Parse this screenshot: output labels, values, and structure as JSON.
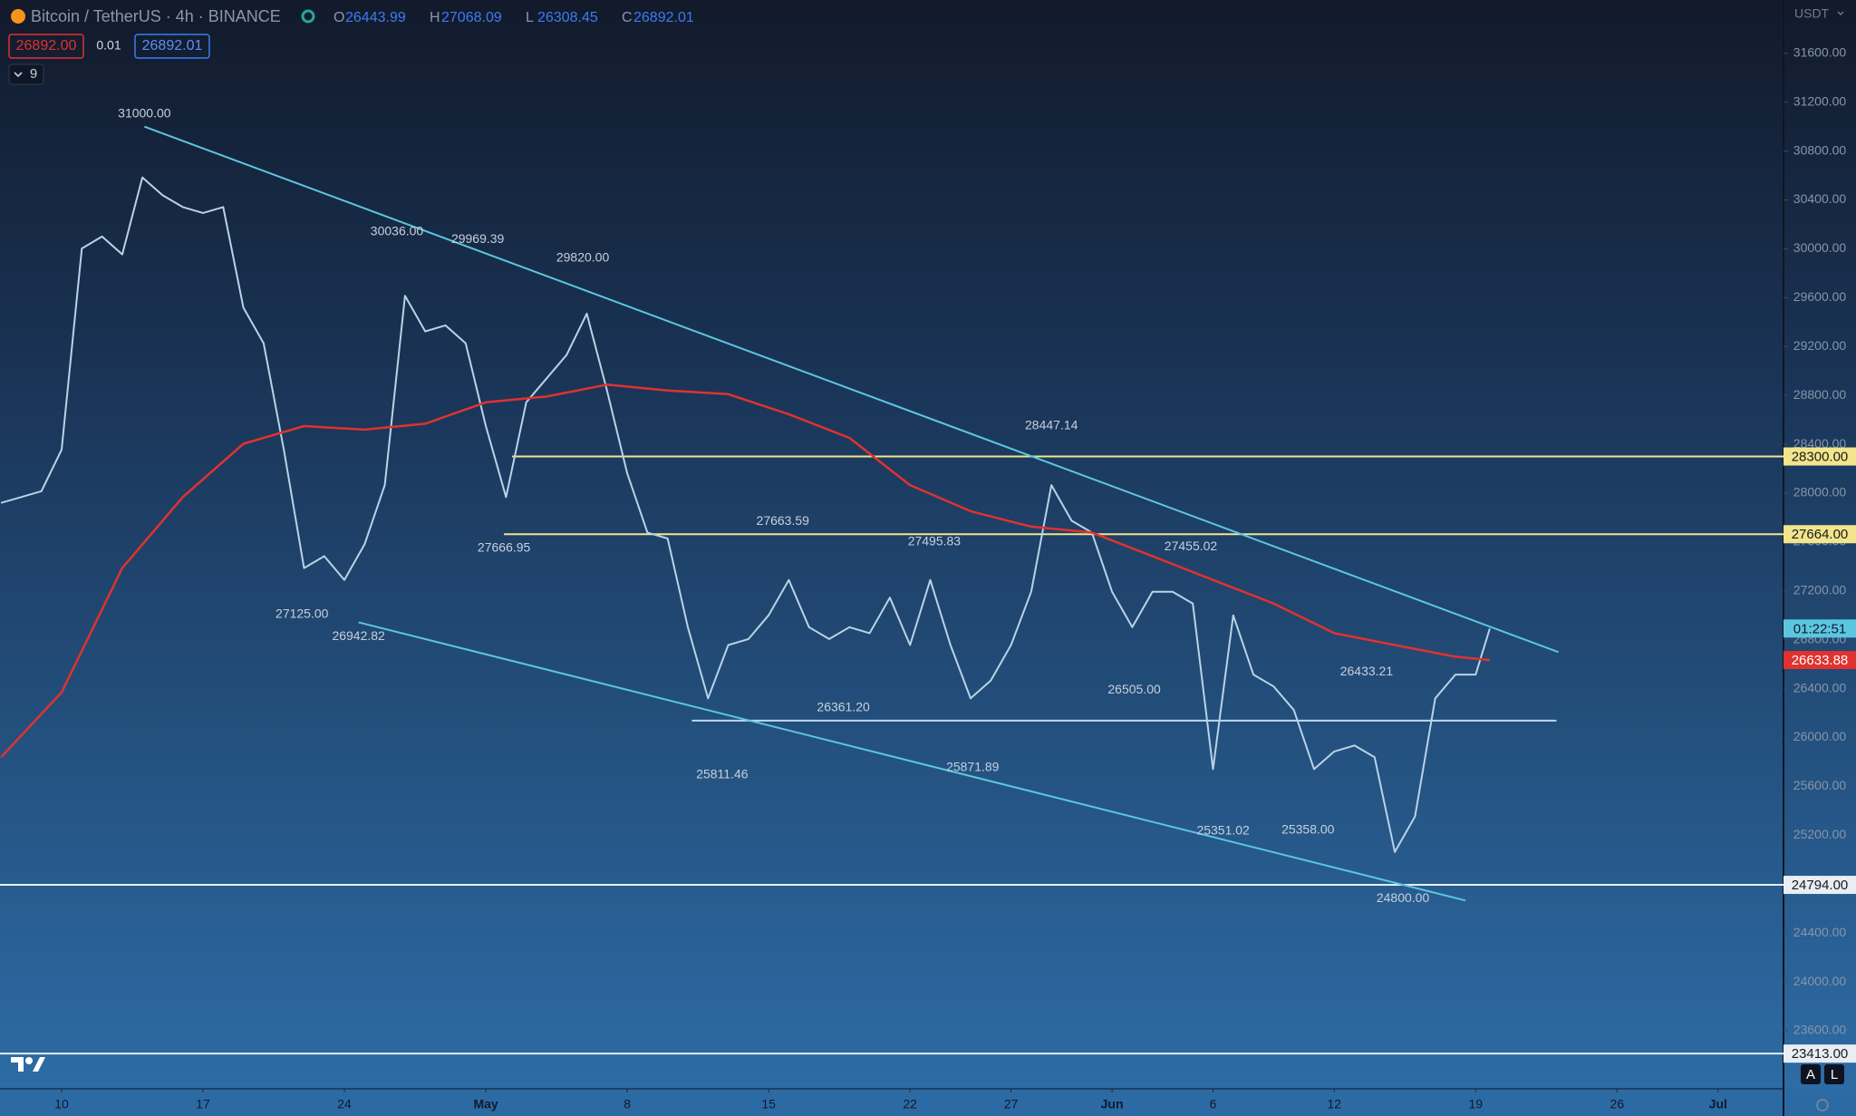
{
  "chart_data": {
    "type": "line",
    "title": "Bitcoin / TetherUS · 4h · BINANCE",
    "ohlc": {
      "labels": [
        "O",
        "H",
        "L",
        "C"
      ],
      "values": [
        26443.99,
        27068.09,
        26308.45,
        26892.01
      ]
    },
    "badges": {
      "sell": "26892.00",
      "spread": "0.01",
      "buy": "26892.01",
      "indicators": "9"
    },
    "currency": "USDT",
    "countdown": "01:22:51",
    "xlim": [
      6.95,
      95.24
    ],
    "xticks": [
      {
        "value": 10,
        "label": "10"
      },
      {
        "value": 17,
        "label": "17"
      },
      {
        "value": 24,
        "label": "24"
      },
      {
        "value": 31,
        "label": "May"
      },
      {
        "value": 38,
        "label": "8"
      },
      {
        "value": 45,
        "label": "15"
      },
      {
        "value": 52,
        "label": "22"
      },
      {
        "value": 57,
        "label": "27"
      },
      {
        "value": 62,
        "label": "Jun"
      },
      {
        "value": 67,
        "label": "6"
      },
      {
        "value": 73,
        "label": "12"
      },
      {
        "value": 80,
        "label": "19"
      },
      {
        "value": 87,
        "label": "26"
      },
      {
        "value": 92,
        "label": "Jul"
      }
    ],
    "ylim": [
      23125,
      32036
    ],
    "yticks": [
      {
        "value": 23600,
        "label": "23600.00"
      },
      {
        "value": 24000,
        "label": "24000.00"
      },
      {
        "value": 24400,
        "label": "24400.00"
      },
      {
        "value": 24800,
        "label": "24800.00"
      },
      {
        "value": 25200,
        "label": "25200.00"
      },
      {
        "value": 25600,
        "label": "25600.00"
      },
      {
        "value": 26000,
        "label": "26000.00"
      },
      {
        "value": 26400,
        "label": "26400.00"
      },
      {
        "value": 26800,
        "label": "26800.00"
      },
      {
        "value": 27200,
        "label": "27200.00"
      },
      {
        "value": 27600,
        "label": "27600.00"
      },
      {
        "value": 28000,
        "label": "28000.00"
      },
      {
        "value": 28400,
        "label": "28400.00"
      },
      {
        "value": 28800,
        "label": "28800.00"
      },
      {
        "value": 29200,
        "label": "29200.00"
      },
      {
        "value": 29600,
        "label": "29600.00"
      },
      {
        "value": 30000,
        "label": "30000.00"
      },
      {
        "value": 30400,
        "label": "30400.00"
      },
      {
        "value": 30800,
        "label": "30800.00"
      },
      {
        "value": 31200,
        "label": "31200.00"
      },
      {
        "value": 31600,
        "label": "31600.00"
      }
    ],
    "series": [
      {
        "color": "#b9d3e6",
        "x": [
          7,
          8,
          9,
          10,
          11,
          12,
          13,
          14,
          15,
          16,
          17,
          18,
          19,
          20,
          21,
          22,
          23,
          24,
          25,
          26,
          27,
          28,
          29,
          30,
          31,
          32,
          33,
          34,
          35,
          36,
          37,
          38,
          39,
          40,
          41,
          42,
          43,
          44,
          45,
          46,
          47,
          48,
          49,
          50,
          51,
          52,
          53,
          54,
          55,
          56,
          57,
          58,
          59,
          60,
          61,
          62,
          63,
          64,
          65,
          66,
          67,
          68,
          69,
          70,
          71,
          72,
          73,
          74,
          75,
          76,
          77,
          78,
          79,
          80,
          80.7
        ],
        "values": [
          27920,
          27968,
          28016,
          28356,
          30002,
          30100,
          29954,
          30583,
          30438,
          30341,
          30293,
          30341,
          29518,
          29227,
          28356,
          27387,
          27484,
          27290,
          27581,
          28066,
          29615,
          29324,
          29373,
          29227,
          28549,
          27968,
          28743,
          28937,
          29131,
          29469,
          28840,
          28162,
          27678,
          27629,
          26903,
          26321,
          26757,
          26806,
          27000,
          27290,
          26903,
          26806,
          26903,
          26854,
          27145,
          26757,
          27290,
          26757,
          26321,
          26467,
          26757,
          27193,
          28066,
          27774,
          27678,
          27193,
          26903,
          27193,
          27193,
          27097,
          25741,
          27000,
          26515,
          26418,
          26225,
          25741,
          25886,
          25935,
          25838,
          25063,
          25354,
          26321,
          26515,
          26515,
          26892.01
        ]
      },
      {
        "color": "#e0322f",
        "x": [
          7,
          10,
          13,
          16,
          19,
          22,
          25,
          28,
          31,
          34,
          37,
          40,
          43,
          46,
          49,
          52,
          55,
          58,
          61,
          64,
          67,
          70,
          73,
          76,
          79,
          80.7
        ],
        "values": [
          25838,
          26370,
          27387,
          27968,
          28404,
          28549,
          28520,
          28568,
          28743,
          28791,
          28888,
          28840,
          28810,
          28646,
          28452,
          28066,
          27852,
          27726,
          27678,
          27484,
          27290,
          27097,
          26854,
          26757,
          26661,
          26633.88
        ]
      }
    ],
    "trendlines": [
      {
        "color": "#5cc6e0",
        "x": [
          14.1,
          84.1
        ],
        "values": [
          31000,
          26699
        ]
      },
      {
        "color": "#5cc6e0",
        "x": [
          24.7,
          79.5
        ],
        "values": [
          26942.82,
          24666
        ]
      }
    ],
    "levels": [
      {
        "value": 28300,
        "x": [
          32.3,
          95.24
        ],
        "color": "#f2e58c"
      },
      {
        "value": 27664,
        "x": [
          31.9,
          95.24
        ],
        "color": "#f2e58c"
      },
      {
        "value": 26138,
        "x": [
          41.2,
          84.0
        ],
        "color": "#bcd8f5"
      },
      {
        "value": 24794,
        "x": [
          6.95,
          95.24
        ],
        "color": "#e8eef4"
      },
      {
        "value": 23413,
        "x": [
          6.95,
          95.24
        ],
        "color": "#e8eef4"
      }
    ],
    "price_tags": [
      {
        "value": 28300,
        "label": "28300.00",
        "color": "#f2e58c",
        "text_color": "#1a1a1a"
      },
      {
        "value": 27664,
        "label": "27664.00",
        "color": "#f2e58c",
        "text_color": "#1a1a1a"
      },
      {
        "value": 26633.88,
        "label": "26633.88",
        "color": "#e0322f",
        "text_color": "#ffffff"
      },
      {
        "value": 24794,
        "label": "24794.00",
        "color": "#e8eef4",
        "text_color": "#1a1a1a"
      },
      {
        "value": 23413,
        "label": "23413.00",
        "color": "#e8eef4",
        "text_color": "#1a1a1a"
      }
    ],
    "annotations": [
      {
        "x": 14.1,
        "value": 31000,
        "label": "31000.00"
      },
      {
        "x": 21.9,
        "value": 27125,
        "label": "27125.00"
      },
      {
        "x": 24.7,
        "value": 26942.82,
        "label": "26942.82"
      },
      {
        "x": 26.6,
        "value": 30036,
        "label": "30036.00"
      },
      {
        "x": 30.6,
        "value": 29969.39,
        "label": "29969.39"
      },
      {
        "x": 31.9,
        "value": 27666.95,
        "label": "27666.95"
      },
      {
        "x": 35.8,
        "value": 29820,
        "label": "29820.00"
      },
      {
        "x": 42.7,
        "value": 25811.46,
        "label": "25811.46"
      },
      {
        "x": 45.7,
        "value": 27663.59,
        "label": "27663.59"
      },
      {
        "x": 48.7,
        "value": 26361.2,
        "label": "26361.20"
      },
      {
        "x": 53.2,
        "value": 27495.83,
        "label": "27495.83"
      },
      {
        "x": 55.1,
        "value": 25871.89,
        "label": "25871.89"
      },
      {
        "x": 59.0,
        "value": 28447.14,
        "label": "28447.14"
      },
      {
        "x": 63.1,
        "value": 26505,
        "label": "26505.00"
      },
      {
        "x": 65.9,
        "value": 27455.02,
        "label": "27455.02"
      },
      {
        "x": 67.5,
        "value": 25351.02,
        "label": "25351.02"
      },
      {
        "x": 71.7,
        "value": 25358,
        "label": "25358.00"
      },
      {
        "x": 74.6,
        "value": 26433.21,
        "label": "26433.21"
      },
      {
        "x": 76.4,
        "value": 24800,
        "label": "24800.00"
      }
    ]
  }
}
